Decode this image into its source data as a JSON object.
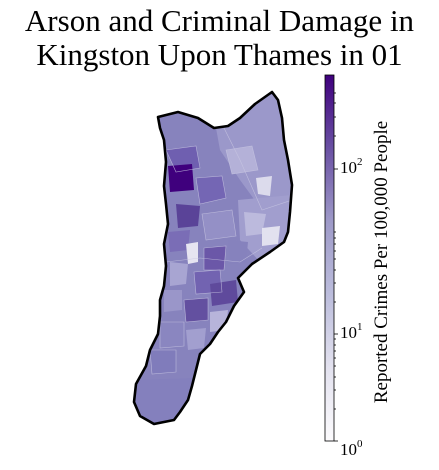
{
  "title": {
    "line1": "Arson and Criminal Damage in",
    "line2": "Kingston Upon Thames in 01"
  },
  "colorbar": {
    "label": "Reported Crimes Per 100,000 People",
    "scale": "log",
    "range": [
      1,
      400
    ],
    "ticks": [
      {
        "base": "10",
        "exp": "0",
        "value": 1
      },
      {
        "base": "10",
        "exp": "1",
        "value": 10
      },
      {
        "base": "10",
        "exp": "2",
        "value": 100
      }
    ],
    "colormap": "Purples",
    "colors": {
      "low": "#fcfbfd",
      "mid": "#9e9ac8",
      "high": "#3f007d"
    }
  },
  "map": {
    "area": "Kingston Upon Thames",
    "fill_typical": "#8783bd",
    "boundary_color": "#000000"
  }
}
